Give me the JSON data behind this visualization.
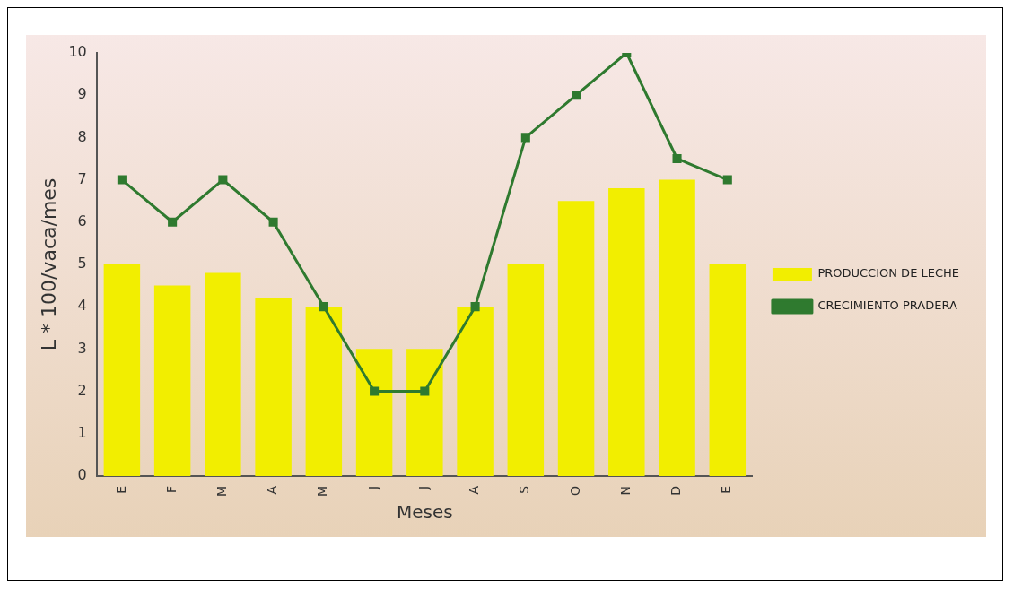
{
  "chart_data": {
    "type": "bar",
    "xlabel": "Meses",
    "ylabel": "L * 100/vaca/mes",
    "categories": [
      "E",
      "F",
      "M",
      "A",
      "M",
      "J",
      "J",
      "A",
      "S",
      "O",
      "N",
      "D",
      "E"
    ],
    "series": [
      {
        "name": "PRODUCCION DE LECHE",
        "color": "#f2ee00",
        "values": [
          5,
          4.5,
          4.8,
          4.2,
          4,
          3,
          3,
          4,
          5,
          6.5,
          6.8,
          7,
          5
        ]
      },
      {
        "name": "CRECIMIENTO PRADERA",
        "type": "line",
        "color": "#2f7a2f",
        "values": [
          7,
          6,
          7,
          6,
          4,
          2,
          2,
          4,
          8,
          9,
          10,
          7.5,
          7
        ]
      }
    ],
    "ylim": [
      0,
      10
    ],
    "yticks": [
      0,
      1,
      2,
      3,
      4,
      5,
      6,
      7,
      8,
      9,
      10
    ],
    "grid": false,
    "legend": "right",
    "marker": "square",
    "line_style": "solid"
  }
}
